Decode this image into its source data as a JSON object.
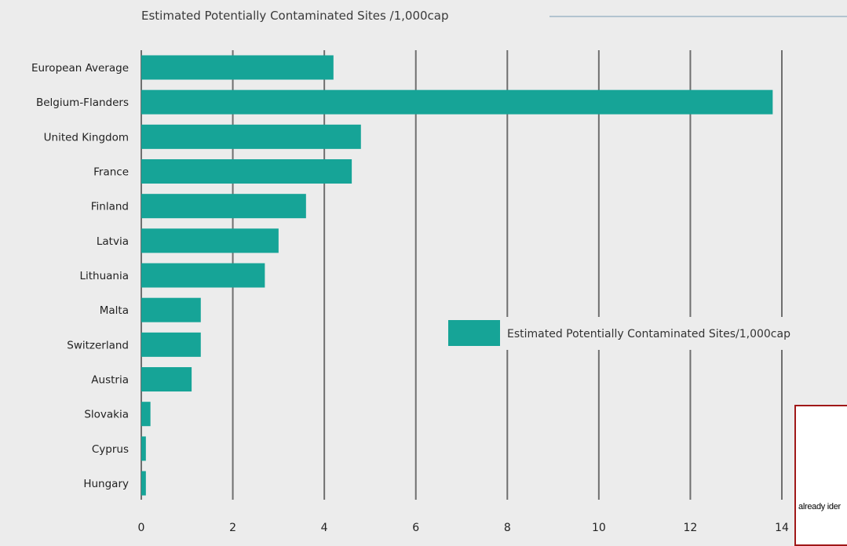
{
  "chart_data": {
    "type": "bar",
    "orientation": "horizontal",
    "title": "Estimated Potentially Contaminated Sites /1,000cap",
    "categories": [
      "European Average",
      "Belgium-Flanders",
      "United Kingdom",
      "France",
      "Finland",
      "Latvia",
      "Lithuania",
      "Malta",
      "Switzerland",
      "Austria",
      "Slovakia",
      "Cyprus",
      "Hungary"
    ],
    "series": [
      {
        "name": "Estimated Potentially Contaminated Sites/1,000cap",
        "values": [
          4.2,
          13.8,
          4.8,
          4.6,
          3.6,
          3.0,
          2.7,
          1.3,
          1.3,
          1.1,
          0.2,
          0.1,
          0.1
        ]
      }
    ],
    "xlim": [
      0,
      14
    ],
    "xticks": [
      0,
      2,
      4,
      6,
      8,
      10,
      12,
      14
    ],
    "grid": true,
    "legend_position": "right",
    "bar_color": "#16a497"
  },
  "popup": {
    "text": "already ider"
  }
}
